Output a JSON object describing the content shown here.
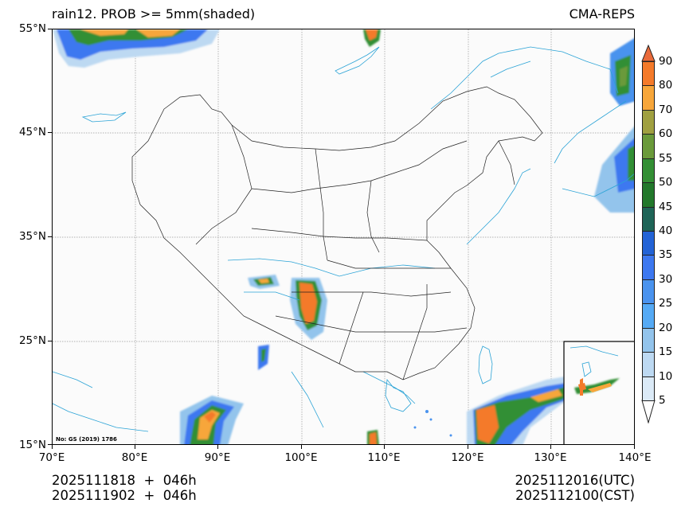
{
  "header": {
    "title_left": "rain12. PROB >= 5mm(shaded)",
    "title_right": "CMA-REPS"
  },
  "map": {
    "extent": {
      "lon_min": 70,
      "lon_max": 140,
      "lat_min": 15,
      "lat_max": 55
    },
    "lat_ticks": [
      "55°N",
      "45°N",
      "35°N",
      "25°N",
      "15°N"
    ],
    "lon_ticks": [
      "70°E",
      "80°E",
      "90°E",
      "100°E",
      "110°E",
      "120°E",
      "130°E",
      "140°E"
    ],
    "map_note": "No: GS (2019) 1786",
    "gridlines": "dotted",
    "inset": "South China Sea inset (lower right)",
    "colors": {
      "boundary": "#222222",
      "river_coast": "#2ba3d6",
      "gridline": "#888888"
    }
  },
  "colorbar": {
    "levels": [
      "5",
      "10",
      "15",
      "20",
      "25",
      "30",
      "35",
      "40",
      "45",
      "50",
      "55",
      "60",
      "70",
      "80",
      "90"
    ],
    "colors": [
      "#dbeaf7",
      "#bdd9f2",
      "#93c4ec",
      "#55aaf5",
      "#4a93ee",
      "#3d78f0",
      "#2363d6",
      "#1e6457",
      "#22782b",
      "#338f34",
      "#6a9a3a",
      "#a0a040",
      "#f7a63a",
      "#f47a2a",
      "#e96a3a"
    ],
    "extend": "both"
  },
  "footer": {
    "left_line1": "2025111818  +  046h",
    "left_line2": "2025111902  +  046h",
    "right_line1": "2025112016(UTC)",
    "right_line2": "2025112100(CST)"
  }
}
